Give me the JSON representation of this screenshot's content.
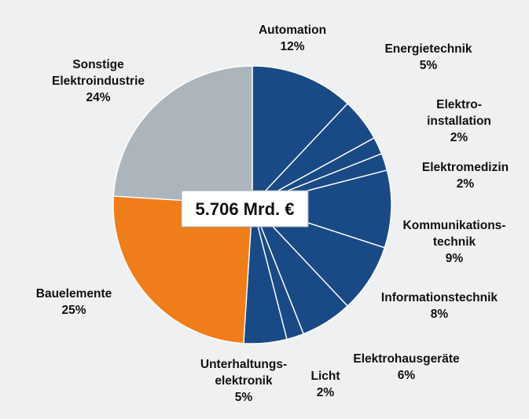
{
  "chart_data": {
    "type": "pie",
    "total_label": "5.706 Mrd. €",
    "slices": [
      {
        "label_lines": [
          "Automation"
        ],
        "pct_label": "12%",
        "value": 12,
        "color": "#1a4a85"
      },
      {
        "label_lines": [
          "Energietechnik"
        ],
        "pct_label": "5%",
        "value": 5,
        "color": "#1a4a85"
      },
      {
        "label_lines": [
          "Elektro-",
          "installation"
        ],
        "pct_label": "2%",
        "value": 2,
        "color": "#1a4a85"
      },
      {
        "label_lines": [
          "Elektromedizin"
        ],
        "pct_label": "2%",
        "value": 2,
        "color": "#1a4a85"
      },
      {
        "label_lines": [
          "Kommunikations-",
          "technik"
        ],
        "pct_label": "9%",
        "value": 9,
        "color": "#1a4a85"
      },
      {
        "label_lines": [
          "Informationstechnik"
        ],
        "pct_label": "8%",
        "value": 8,
        "color": "#1a4a85"
      },
      {
        "label_lines": [
          "Elektrohausgeräte"
        ],
        "pct_label": "6%",
        "value": 6,
        "color": "#1a4a85"
      },
      {
        "label_lines": [
          "Licht"
        ],
        "pct_label": "2%",
        "value": 2,
        "color": "#1a4a85"
      },
      {
        "label_lines": [
          "Unterhaltungs-",
          "elektronik"
        ],
        "pct_label": "5%",
        "value": 5,
        "color": "#1a4a85"
      },
      {
        "label_lines": [
          "Bauelemente"
        ],
        "pct_label": "25%",
        "value": 25,
        "color": "#ee7d1a"
      },
      {
        "label_lines": [
          "Sonstige",
          "Elektroindustrie"
        ],
        "pct_label": "24%",
        "value": 24,
        "color": "#acb5bb"
      }
    ]
  }
}
